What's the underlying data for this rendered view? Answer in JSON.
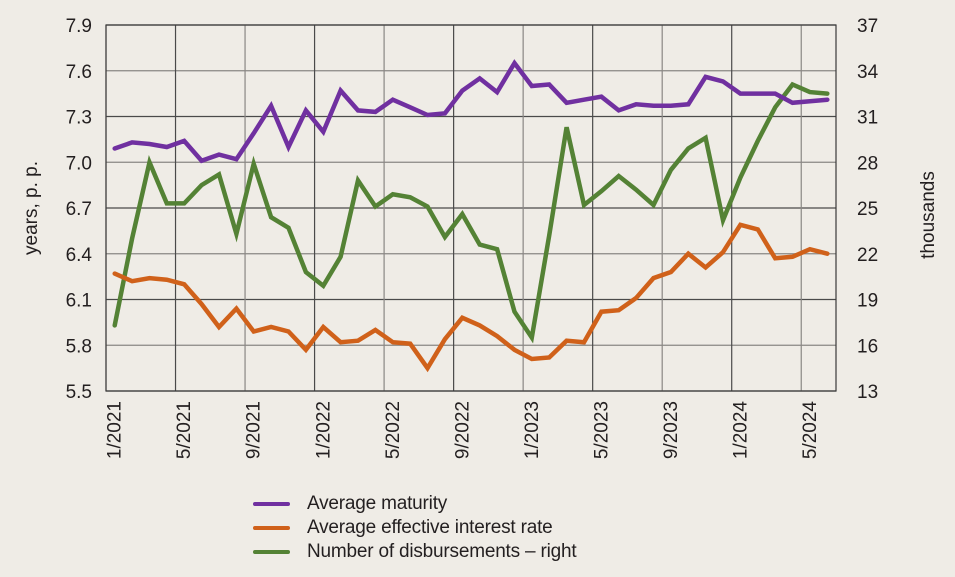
{
  "chart_data": {
    "type": "line",
    "title": "",
    "ylabel": "years, p. p.",
    "y2label": "thousands",
    "xlabel": "",
    "ylim": [
      5.5,
      7.9
    ],
    "y2lim": [
      13,
      37
    ],
    "yticks": [
      "5.5",
      "5.8",
      "6.1",
      "6.4",
      "6.7",
      "7.0",
      "7.3",
      "7.6",
      "7.9"
    ],
    "y2ticks": [
      "13",
      "16",
      "19",
      "22",
      "25",
      "28",
      "31",
      "34",
      "37"
    ],
    "grid": true,
    "legend_position": "bottom",
    "x": [
      "1/2021",
      "2/2021",
      "3/2021",
      "4/2021",
      "5/2021",
      "6/2021",
      "7/2021",
      "8/2021",
      "9/2021",
      "10/2021",
      "11/2021",
      "12/2021",
      "1/2022",
      "2/2022",
      "3/2022",
      "4/2022",
      "5/2022",
      "6/2022",
      "7/2022",
      "8/2022",
      "9/2022",
      "10/2022",
      "11/2022",
      "12/2022",
      "1/2023",
      "2/2023",
      "3/2023",
      "4/2023",
      "5/2023",
      "6/2023",
      "7/2023",
      "8/2023",
      "9/2023",
      "10/2023",
      "11/2023",
      "12/2023",
      "1/2024",
      "2/2024",
      "3/2024",
      "4/2024",
      "5/2024",
      "6/2024"
    ],
    "xtick_labels": [
      "1/2021",
      "5/2021",
      "9/2021",
      "1/2022",
      "5/2022",
      "9/2022",
      "1/2023",
      "5/2023",
      "9/2023",
      "1/2024",
      "5/2024"
    ],
    "series": [
      {
        "name": "Average maturity",
        "axis": "left",
        "color": "#7030a0",
        "values": [
          7.09,
          7.13,
          7.12,
          7.1,
          7.14,
          7.01,
          7.05,
          7.02,
          7.19,
          7.37,
          7.1,
          7.34,
          7.2,
          7.47,
          7.34,
          7.33,
          7.41,
          7.36,
          7.31,
          7.32,
          7.47,
          7.55,
          7.46,
          7.65,
          7.5,
          7.51,
          7.39,
          7.41,
          7.43,
          7.34,
          7.38,
          7.37,
          7.37,
          7.38,
          7.56,
          7.53,
          7.45,
          7.45,
          7.45,
          7.39,
          7.4,
          7.41
        ]
      },
      {
        "name": "Average effective interest rate",
        "axis": "left",
        "color": "#d0611a",
        "values": [
          6.27,
          6.22,
          6.24,
          6.23,
          6.2,
          6.07,
          5.92,
          6.04,
          5.89,
          5.92,
          5.89,
          5.77,
          5.92,
          5.82,
          5.83,
          5.9,
          5.82,
          5.81,
          5.65,
          5.84,
          5.98,
          5.93,
          5.86,
          5.77,
          5.71,
          5.72,
          5.83,
          5.82,
          6.02,
          6.03,
          6.11,
          6.24,
          6.28,
          6.4,
          6.31,
          6.41,
          6.59,
          6.56,
          6.37,
          6.38,
          6.43,
          6.4
        ]
      },
      {
        "name": "Number of disbursements – right",
        "axis": "right",
        "color": "#548235",
        "values": [
          17.3,
          23.0,
          28.0,
          25.3,
          25.3,
          26.5,
          27.2,
          23.3,
          27.9,
          24.4,
          23.7,
          20.8,
          19.9,
          21.8,
          26.8,
          25.1,
          25.9,
          25.7,
          25.1,
          23.1,
          24.6,
          22.6,
          22.3,
          18.2,
          16.5,
          23.2,
          30.3,
          25.2,
          26.1,
          27.1,
          26.2,
          25.2,
          27.5,
          28.9,
          29.6,
          24.2,
          27.0,
          29.4,
          31.6,
          33.1,
          32.6,
          32.5
        ]
      }
    ]
  },
  "colors": {
    "background": "#efece6",
    "grid": "#4a4a4a",
    "text": "#231f20"
  }
}
